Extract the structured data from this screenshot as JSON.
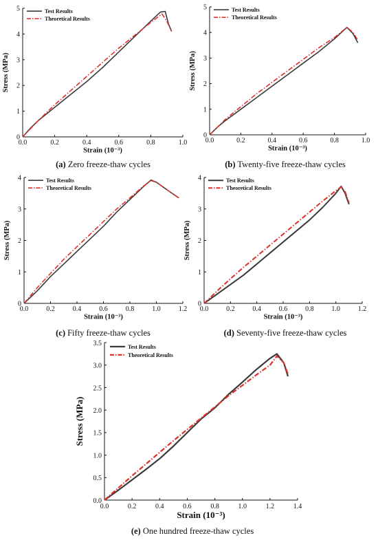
{
  "chart_data": [
    {
      "type": "line",
      "caption_letter": "(a)",
      "caption_text": "Zero freeze-thaw cycles",
      "xlabel": "Strain (10⁻³)",
      "ylabel": "Stress (MPa)",
      "xlim": [
        0,
        1.0
      ],
      "ylim": [
        0,
        5
      ],
      "xticks": [
        "0.0",
        "0.2",
        "0.4",
        "0.6",
        "0.8",
        "1.0"
      ],
      "yticks": [
        "0",
        "1",
        "2",
        "3",
        "4",
        "5"
      ],
      "legend_position": "top-left",
      "series": [
        {
          "name": "Test Results",
          "color": "#3a3a3a",
          "style": "solid",
          "x": [
            0,
            0.05,
            0.1,
            0.2,
            0.3,
            0.4,
            0.5,
            0.6,
            0.7,
            0.8,
            0.86,
            0.89,
            0.91,
            0.93
          ],
          "y": [
            0,
            0.35,
            0.65,
            1.15,
            1.65,
            2.15,
            2.7,
            3.3,
            3.9,
            4.5,
            4.85,
            4.88,
            4.4,
            4.1
          ]
        },
        {
          "name": "Theoretical Results",
          "color": "#e0302a",
          "style": "dashdot",
          "x": [
            0,
            0.1,
            0.2,
            0.3,
            0.4,
            0.5,
            0.6,
            0.7,
            0.8,
            0.87,
            0.9,
            0.93
          ],
          "y": [
            0,
            0.65,
            1.25,
            1.8,
            2.35,
            2.9,
            3.45,
            3.95,
            4.45,
            4.78,
            4.5,
            4.1
          ]
        }
      ]
    },
    {
      "type": "line",
      "caption_letter": "(b)",
      "caption_text": "Twenty-five freeze-thaw cycles",
      "xlabel": "Strain (10⁻³)",
      "ylabel": "Stress (MPa)",
      "xlim": [
        0,
        1.0
      ],
      "ylim": [
        0,
        5
      ],
      "xticks": [
        "0.0",
        "0.2",
        "0.4",
        "0.6",
        "0.8",
        "1.0"
      ],
      "yticks": [
        "0",
        "1",
        "2",
        "3",
        "4",
        "5"
      ],
      "legend_position": "top-left",
      "series": [
        {
          "name": "Test Results",
          "color": "#3a3a3a",
          "style": "solid",
          "x": [
            0,
            0.05,
            0.1,
            0.2,
            0.3,
            0.4,
            0.5,
            0.6,
            0.7,
            0.8,
            0.88,
            0.92,
            0.95
          ],
          "y": [
            0,
            0.3,
            0.55,
            1.0,
            1.45,
            1.9,
            2.35,
            2.8,
            3.25,
            3.75,
            4.2,
            3.95,
            3.6
          ]
        },
        {
          "name": "Theoretical Results",
          "color": "#e0302a",
          "style": "dashdot",
          "x": [
            0,
            0.1,
            0.2,
            0.3,
            0.4,
            0.5,
            0.6,
            0.7,
            0.8,
            0.88,
            0.92,
            0.95
          ],
          "y": [
            0,
            0.6,
            1.1,
            1.6,
            2.05,
            2.5,
            2.95,
            3.4,
            3.8,
            4.2,
            4.0,
            3.7
          ]
        }
      ]
    },
    {
      "type": "line",
      "caption_letter": "(c)",
      "caption_text": "Fifty freeze-thaw cycles",
      "xlabel": "Strain (10⁻³)",
      "ylabel": "Stress (MPa)",
      "xlim": [
        0,
        1.2
      ],
      "ylim": [
        0,
        4
      ],
      "xticks": [
        "0.0",
        "0.2",
        "0.4",
        "0.6",
        "0.8",
        "1.0",
        "1.2"
      ],
      "yticks": [
        "0",
        "1",
        "2",
        "3",
        "4"
      ],
      "legend_position": "top-left",
      "series": [
        {
          "name": "Test Results",
          "color": "#3a3a3a",
          "style": "solid",
          "x": [
            0,
            0.1,
            0.2,
            0.3,
            0.4,
            0.5,
            0.6,
            0.7,
            0.8,
            0.9,
            0.96,
            1.0,
            1.05,
            1.1,
            1.17
          ],
          "y": [
            0,
            0.4,
            0.85,
            1.25,
            1.65,
            2.05,
            2.45,
            2.9,
            3.3,
            3.7,
            3.92,
            3.85,
            3.7,
            3.55,
            3.35
          ]
        },
        {
          "name": "Theoretical Results",
          "color": "#e0302a",
          "style": "dashdot",
          "x": [
            0,
            0.1,
            0.2,
            0.3,
            0.4,
            0.5,
            0.6,
            0.7,
            0.8,
            0.9,
            0.96,
            1.0,
            1.05,
            1.1,
            1.17
          ],
          "y": [
            0,
            0.5,
            0.95,
            1.4,
            1.8,
            2.2,
            2.6,
            3.0,
            3.35,
            3.72,
            3.9,
            3.85,
            3.7,
            3.55,
            3.35
          ]
        }
      ]
    },
    {
      "type": "line",
      "caption_letter": "(d)",
      "caption_text": "Seventy-five freeze-thaw cycles",
      "xlabel": "Strain (10⁻³)",
      "ylabel": "Stress (MPa)",
      "xlim": [
        0,
        1.2
      ],
      "ylim": [
        0,
        4
      ],
      "xticks": [
        "0.0",
        "0.2",
        "0.4",
        "0.6",
        "0.8",
        "1.0",
        "1.2"
      ],
      "yticks": [
        "0",
        "1",
        "2",
        "3",
        "4"
      ],
      "legend_position": "top-left",
      "series": [
        {
          "name": "Test Results",
          "color": "#3a3a3a",
          "style": "solid",
          "x": [
            0,
            0.1,
            0.2,
            0.3,
            0.4,
            0.5,
            0.6,
            0.7,
            0.8,
            0.9,
            1.0,
            1.04,
            1.07,
            1.1
          ],
          "y": [
            0,
            0.3,
            0.6,
            0.9,
            1.25,
            1.6,
            1.95,
            2.3,
            2.65,
            3.05,
            3.5,
            3.72,
            3.5,
            3.15
          ]
        },
        {
          "name": "Theoretical Results",
          "color": "#e0302a",
          "style": "dashdot",
          "x": [
            0,
            0.1,
            0.2,
            0.3,
            0.4,
            0.5,
            0.6,
            0.7,
            0.8,
            0.9,
            1.0,
            1.04,
            1.07,
            1.1
          ],
          "y": [
            0,
            0.4,
            0.78,
            1.15,
            1.5,
            1.85,
            2.2,
            2.55,
            2.9,
            3.25,
            3.58,
            3.7,
            3.55,
            3.2
          ]
        }
      ]
    },
    {
      "type": "line",
      "caption_letter": "(e)",
      "caption_text": "One hundred freeze-thaw cycles",
      "xlabel": "Strain (10⁻³)",
      "ylabel": "Stress (MPa)",
      "xlim": [
        0,
        1.4
      ],
      "ylim": [
        0,
        3.5
      ],
      "xticks": [
        "0.0",
        "0.2",
        "0.4",
        "0.6",
        "0.8",
        "1.0",
        "1.2",
        "1.4"
      ],
      "yticks": [
        "0.0",
        "0.5",
        "1.0",
        "1.5",
        "2.0",
        "2.5",
        "3.0",
        "3.5"
      ],
      "legend_position": "top-left",
      "series": [
        {
          "name": "Test Results",
          "color": "#3a3a3a",
          "style": "solid",
          "x": [
            0,
            0.1,
            0.2,
            0.3,
            0.4,
            0.5,
            0.6,
            0.7,
            0.8,
            0.9,
            1.0,
            1.1,
            1.2,
            1.25,
            1.3,
            1.33
          ],
          "y": [
            0,
            0.22,
            0.45,
            0.68,
            0.92,
            1.2,
            1.5,
            1.8,
            2.05,
            2.35,
            2.62,
            2.9,
            3.15,
            3.25,
            3.05,
            2.75
          ]
        },
        {
          "name": "Theoretical Results",
          "color": "#e0302a",
          "style": "dashdot",
          "x": [
            0,
            0.1,
            0.2,
            0.3,
            0.4,
            0.5,
            0.6,
            0.7,
            0.8,
            0.9,
            1.0,
            1.1,
            1.2,
            1.25,
            1.3,
            1.33
          ],
          "y": [
            0,
            0.27,
            0.54,
            0.8,
            1.06,
            1.32,
            1.57,
            1.82,
            2.07,
            2.32,
            2.55,
            2.78,
            3.0,
            3.2,
            3.05,
            2.8
          ]
        }
      ]
    }
  ]
}
